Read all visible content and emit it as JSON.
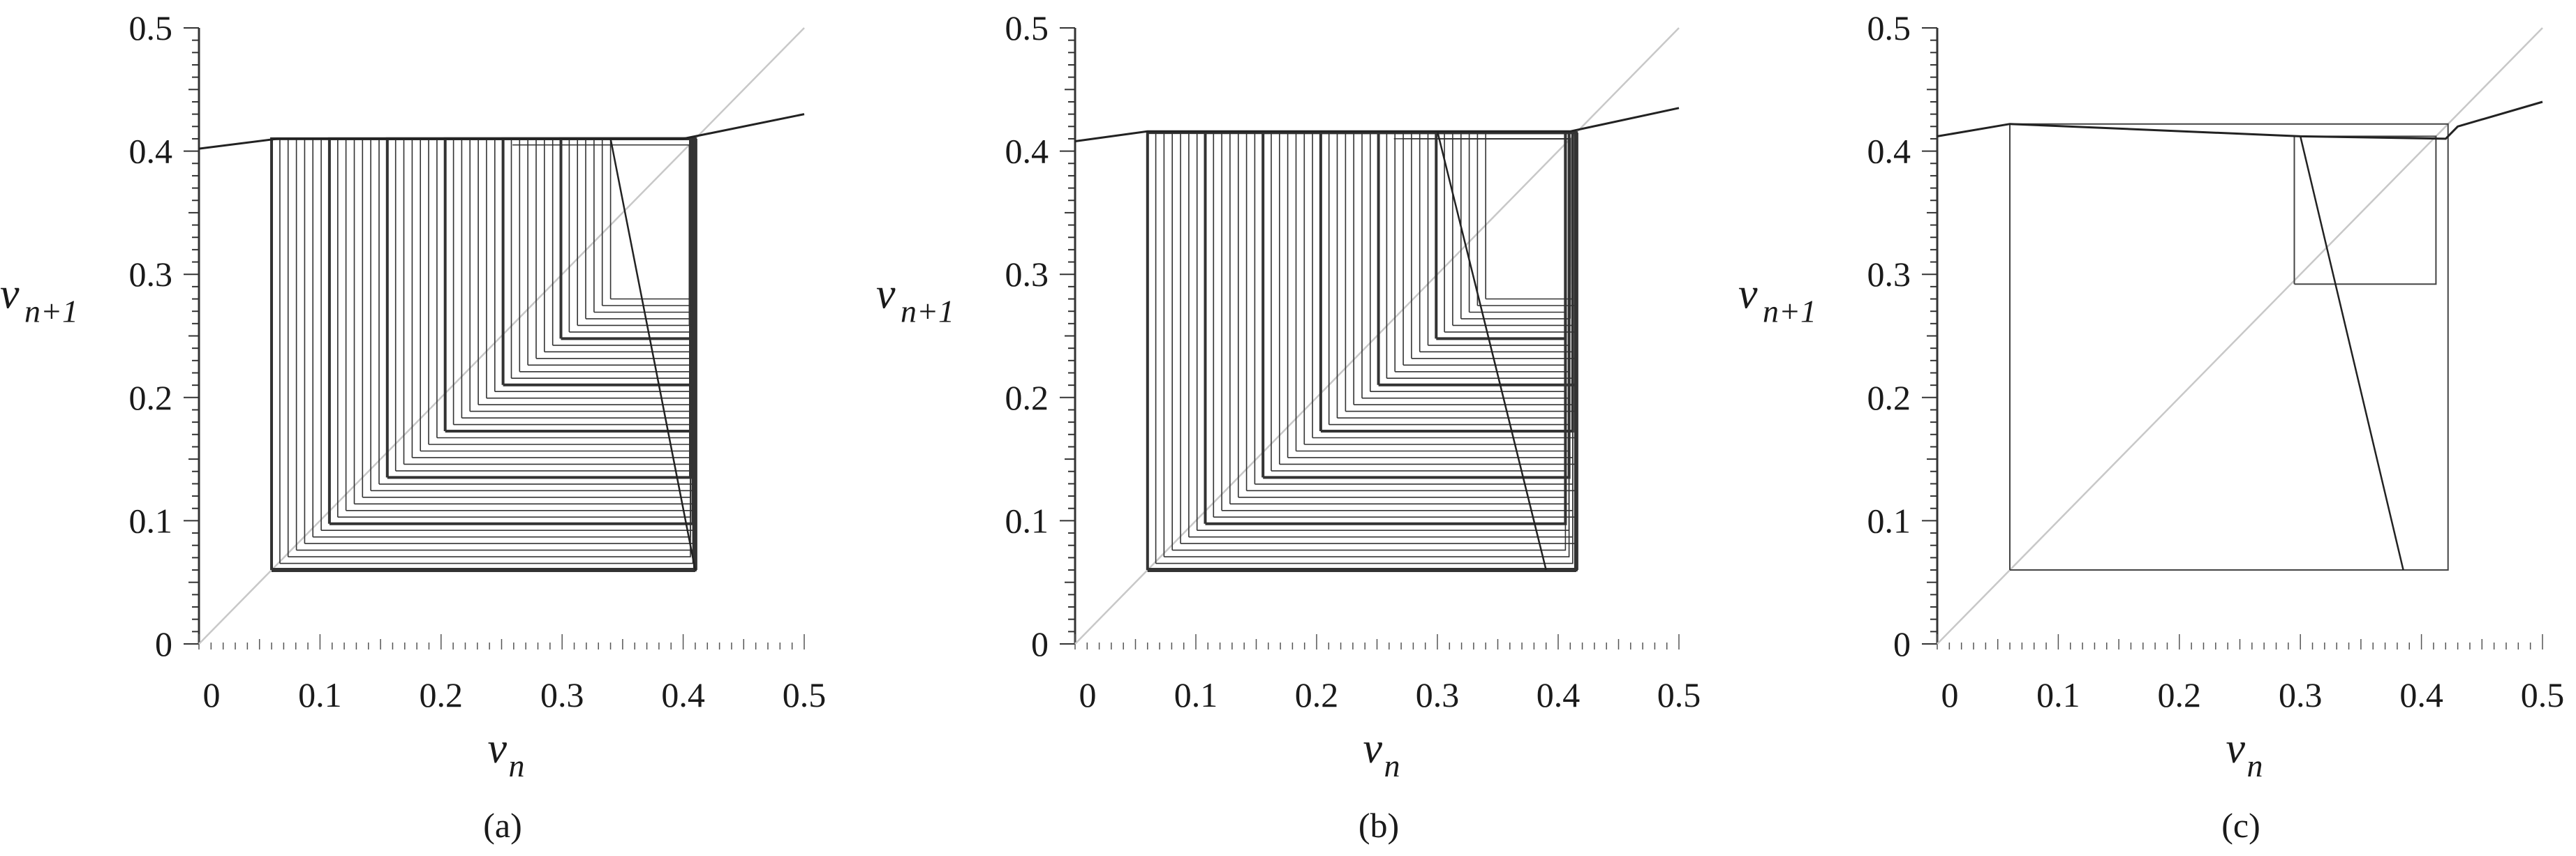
{
  "chart_data": [
    {
      "type": "line",
      "panel_label": "(a)",
      "xlabel": {
        "base": "v",
        "sub": "n"
      },
      "ylabel": {
        "base": "v",
        "sub": "n+1"
      },
      "xlim": [
        0,
        0.5
      ],
      "ylim": [
        0,
        0.5
      ],
      "x_ticks": [
        "0",
        "0.1",
        "0.2",
        "0.3",
        "0.4",
        "0.5"
      ],
      "y_ticks": [
        "0",
        "0.1",
        "0.2",
        "0.3",
        "0.4",
        "0.5"
      ],
      "diagonal": [
        [
          0,
          0
        ],
        [
          0.5,
          0.5
        ]
      ],
      "map_curve": [
        [
          0,
          0.402
        ],
        [
          0.065,
          0.41
        ],
        [
          0.4,
          0.41
        ],
        [
          0.5,
          0.43
        ]
      ],
      "map_branch": [
        [
          0.34,
          0.41
        ],
        [
          0.41,
          0.06
        ]
      ],
      "cobweb_range": {
        "x_min": 0.06,
        "x_max": 0.41,
        "y_min": 0.06,
        "y_max": 0.41
      },
      "line_color": "#333333",
      "diagonal_color": "#c8c8c8"
    },
    {
      "type": "line",
      "panel_label": "(b)",
      "xlabel": {
        "base": "v",
        "sub": "n"
      },
      "ylabel": {
        "base": "v",
        "sub": "n+1"
      },
      "xlim": [
        0,
        0.5
      ],
      "ylim": [
        0,
        0.5
      ],
      "x_ticks": [
        "0",
        "0.1",
        "0.2",
        "0.3",
        "0.4",
        "0.5"
      ],
      "y_ticks": [
        "0",
        "0.1",
        "0.2",
        "0.3",
        "0.4",
        "0.5"
      ],
      "diagonal": [
        [
          0,
          0
        ],
        [
          0.5,
          0.5
        ]
      ],
      "map_curve": [
        [
          0,
          0.408
        ],
        [
          0.06,
          0.416
        ],
        [
          0.41,
          0.416
        ],
        [
          0.5,
          0.435
        ]
      ],
      "map_branch": [
        [
          0.3,
          0.416
        ],
        [
          0.39,
          0.06
        ]
      ],
      "cobweb_range": {
        "x_min": 0.06,
        "x_max": 0.415,
        "y_min": 0.06,
        "y_max": 0.415
      },
      "line_color": "#333333",
      "diagonal_color": "#c8c8c8"
    },
    {
      "type": "line",
      "panel_label": "(c)",
      "xlabel": {
        "base": "v",
        "sub": "n"
      },
      "ylabel": {
        "base": "v",
        "sub": "n+1"
      },
      "xlim": [
        0,
        0.5
      ],
      "ylim": [
        0,
        0.5
      ],
      "x_ticks": [
        "0",
        "0.1",
        "0.2",
        "0.3",
        "0.4",
        "0.5"
      ],
      "y_ticks": [
        "0",
        "0.1",
        "0.2",
        "0.3",
        "0.4",
        "0.5"
      ],
      "diagonal": [
        [
          0,
          0
        ],
        [
          0.5,
          0.5
        ]
      ],
      "map_curve": [
        [
          0,
          0.412
        ],
        [
          0.06,
          0.422
        ],
        [
          0.3,
          0.412
        ],
        [
          0.42,
          0.41
        ],
        [
          0.43,
          0.42
        ],
        [
          0.5,
          0.44
        ]
      ],
      "map_branch": [
        [
          0.3,
          0.412
        ],
        [
          0.385,
          0.06
        ]
      ],
      "orbit": [
        [
          0.06,
          0.06
        ],
        [
          0.06,
          0.422
        ],
        [
          0.422,
          0.422
        ],
        [
          0.422,
          0.06
        ],
        [
          0.06,
          0.06
        ]
      ],
      "orbit2": [
        [
          0.295,
          0.292
        ],
        [
          0.295,
          0.412
        ],
        [
          0.412,
          0.412
        ],
        [
          0.412,
          0.292
        ],
        [
          0.295,
          0.292
        ]
      ],
      "line_color": "#444444",
      "diagonal_color": "#c8c8c8"
    }
  ]
}
